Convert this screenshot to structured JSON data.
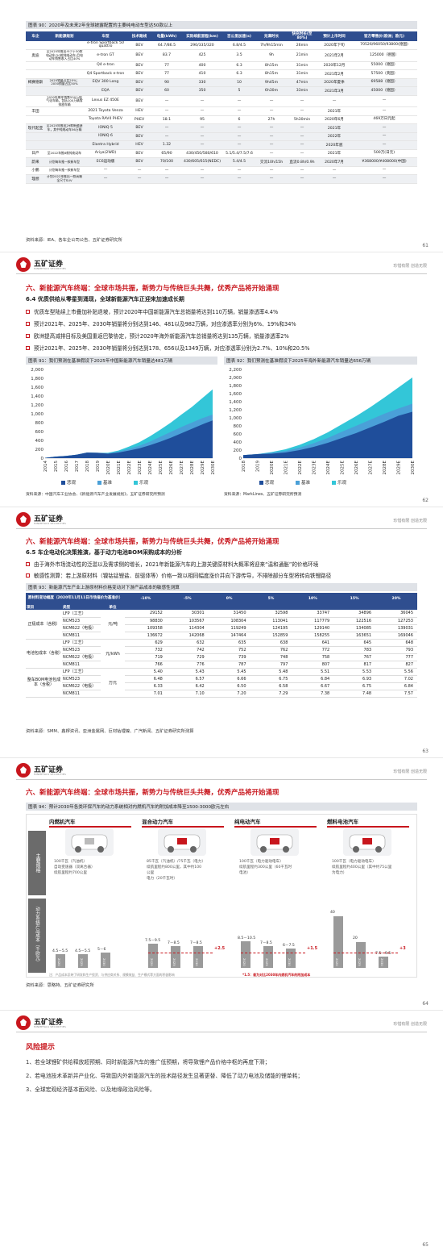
{
  "brand": {
    "name": "五矿证券",
    "en": "MINMETALS SECURITIES",
    "slogan": "珍惜有限 创造无限"
  },
  "p61": {
    "num": "61",
    "fig_title": "图表 90：2020年及未来2年全球披露配置的主要纯电动车型达50款以上",
    "headers": [
      "车企",
      "新能源规划",
      "车型",
      "技术路线",
      "电量(kWh)",
      "实际续航里程(km)",
      "百公里加速(s)",
      "充满时长",
      "快充时长(至80%)",
      "预计上市时间",
      "官方零售价(欧洲；欧元)"
    ],
    "rows": [
      [
        "",
        "",
        "e-tron Sportback 50 quattro",
        "BEV",
        "64.7/86.5",
        "290/335/320",
        "6.8/4.5",
        "7h/9h15min",
        "26min",
        "2020年下旬",
        "70526/96050/93800(德国)"
      ],
      [
        "奥迪",
        "至2025年推出不少于30款电动车(20款纯电动车)且电动车销售收入占比40%",
        "e-tron GT",
        "BEV",
        "83.7",
        "425",
        "3.5",
        "9h",
        "21min",
        "2021年2月",
        "125000（德国）"
      ],
      [
        "",
        "",
        "Q4 e-tron",
        "BEV",
        "77",
        "400",
        "6.3",
        "8h15m",
        "31min",
        "2020年12月",
        "55000（德国）"
      ],
      [
        "",
        "",
        "Q4 Sportback e-tron",
        "BEV",
        "77",
        "410",
        "6.3",
        "8h15m",
        "31min",
        "2021年2月",
        "57500（英国）"
      ],
      [
        "梅赛德斯",
        "2025销量占比25%；2030销量占比50%",
        "EQV 300 Long",
        "BEV",
        "90",
        "330",
        "10",
        "9h45m",
        "47min",
        "2020年夏季",
        "69588（德国）"
      ],
      [
        "",
        "",
        "EQA",
        "BEV",
        "60",
        "350",
        "5",
        "6h30m",
        "33min",
        "2021年3月",
        "45000（德国）"
      ],
      [
        "",
        "2030年每年销售550万电气化车辆，包括100万辆零排放车辆",
        "Lexus EZ 450E",
        "BEV",
        "—",
        "—",
        "—",
        "—",
        "—",
        "—",
        "—"
      ],
      [
        "丰田",
        "",
        "2021 Toyota Venza",
        "HEV",
        "—",
        "—",
        "—",
        "—",
        "—",
        "2021年",
        "—"
      ],
      [
        "",
        "",
        "Toyota RAV4 PHEV",
        "PHEV",
        "18.1",
        "95",
        "6",
        "27h",
        "5h30min",
        "2020年6月",
        "469万日元起"
      ],
      [
        "现代起亚",
        "至2025年推出29款新能源车，其中纯电动车56万辆",
        "IONIQ 5",
        "BEV",
        "—",
        "—",
        "—",
        "—",
        "—",
        "2021年",
        "—"
      ],
      [
        "",
        "",
        "IONIQ 6",
        "BEV",
        "—",
        "—",
        "—",
        "—",
        "—",
        "2022年",
        "—"
      ],
      [
        "",
        "",
        "Elantra Hybrid",
        "HEV",
        "1.32",
        "—",
        "—",
        "—",
        "—",
        "2020年底",
        "—"
      ],
      [
        "日产",
        "至2022年推8款纯电动车",
        "Ariya(2WD)",
        "BEV",
        "65/90",
        "430/450/580/610",
        "5.1/5.4/7.5/7.6",
        "—",
        "—",
        "2021年",
        "500万(日元)"
      ],
      [
        "蔚来",
        "计划每年推一款新车型",
        "EC6运动版",
        "BEV",
        "70/100",
        "430/605/615(NEDC)",
        "5.4/4.5",
        "交流10h/15h",
        "直流0.8h/0.9h",
        "2020年7月",
        "¥368000/¥408000(中国)"
      ],
      [
        "小鹏",
        "计划每年推一款新车型",
        "—",
        "—",
        "—",
        "—",
        "—",
        "—",
        "—",
        "—",
        "—"
      ],
      [
        "理想",
        "计划2022年推出一款高端全尺寸SUV",
        "—",
        "—",
        "—",
        "—",
        "—",
        "—",
        "—",
        "—",
        "—"
      ]
    ],
    "source": "资料来源：IEA、各车企公司公告、五矿证券研究所"
  },
  "p62": {
    "num": "62",
    "sec": "六、新能源汽车终端：全球市场共振，新势力与传统巨头共舞，优秀产品将开始涌现",
    "sub": "6.4 优质供给从零星到涌现，全球新能源汽车正迎来加速成长期",
    "bullets": [
      "优质车型陆续上市叠加补贴退坡，预计2020年中国新能源汽车总销量将达到110万辆，销量渗透率4.4%",
      "预计2021年、2025年、2030年销量将分别达到146、481以及982万辆，对应渗透率分别为6%、19%和34%",
      "欧洲提高减排目标及美国重返巴黎协定，预计2020年海外新能源汽车总销量将达到135万辆，销量渗透率2%",
      "预计2021年、2025年、2030年销量将分别达到178、656以及1349万辆，对应渗透率分别为2.7%、10%和20.5%"
    ],
    "fig91": "图表 91：我们预测在基准假设下2025年中国新能源汽车销量达481万辆",
    "fig92": "图表 92：我们预测在基准假设下2025年海外新能源汽车销量达656万辆",
    "legend": [
      "悲观",
      "基准",
      "乐观"
    ],
    "src1": "资料来源：中国汽车工业协会、《新能源汽车产业发展规划》，五矿证券研究所预测",
    "src2": "资料来源：MarkLines、五矿证券研究所预测"
  },
  "chart_data": [
    {
      "type": "area",
      "title": "",
      "x": [
        "2014",
        "2015",
        "2016",
        "2017",
        "2018",
        "2019",
        "2020E",
        "2021E",
        "2022E",
        "2023E",
        "2024E",
        "2025E",
        "2026E",
        "2027E",
        "2028E",
        "2029E",
        "2030E"
      ],
      "ylim": [
        0,
        2000
      ],
      "yticks": [
        "0",
        "200",
        "400",
        "600",
        "800",
        "1,000",
        "1,200",
        "1,400",
        "1,600",
        "1,800",
        "2,000"
      ],
      "series": [
        {
          "name": "悲观",
          "values": [
            7,
            33,
            51,
            77,
            126,
            121,
            100,
            125,
            170,
            220,
            290,
            370,
            460,
            560,
            660,
            760,
            850
          ]
        },
        {
          "name": "基准",
          "values": [
            7,
            33,
            51,
            77,
            126,
            121,
            110,
            146,
            210,
            280,
            370,
            481,
            590,
            700,
            800,
            900,
            982
          ]
        },
        {
          "name": "乐观",
          "values": [
            7,
            33,
            51,
            77,
            126,
            121,
            120,
            170,
            260,
            360,
            490,
            640,
            800,
            980,
            1150,
            1350,
            1550
          ]
        }
      ],
      "colors": [
        "#1f4e9b",
        "#4aa0d8",
        "#33c6d8"
      ]
    },
    {
      "type": "area",
      "title": "",
      "x": [
        "2018",
        "2019",
        "2020E",
        "2021E",
        "2022E",
        "2023E",
        "2024E",
        "2025E",
        "2026E",
        "2027E",
        "2028E",
        "2029E",
        "2030E"
      ],
      "ylim": [
        0,
        2200
      ],
      "yticks": [
        "0",
        "200",
        "400",
        "600",
        "800",
        "1,000",
        "1,200",
        "1,400",
        "1,600",
        "1,800",
        "2,000",
        "2,200"
      ],
      "series": [
        {
          "name": "悲观",
          "values": [
            75,
            100,
            110,
            140,
            200,
            280,
            380,
            500,
            620,
            760,
            900,
            1050,
            1150
          ]
        },
        {
          "name": "基准",
          "values": [
            75,
            100,
            135,
            178,
            260,
            370,
            500,
            656,
            800,
            950,
            1100,
            1230,
            1349
          ]
        },
        {
          "name": "乐观",
          "values": [
            75,
            100,
            150,
            220,
            330,
            470,
            640,
            840,
            1040,
            1260,
            1500,
            1750,
            2000
          ]
        }
      ],
      "colors": [
        "#1f4e9b",
        "#4aa0d8",
        "#33c6d8"
      ]
    }
  ],
  "p63": {
    "num": "63",
    "sec": "六、新能源汽车终端：全球市场共振，新势力与传统巨头共舞，优秀产品将开始涌现",
    "sub": "6.5 车企电动化决策推演，基于动力电池BOM采购成本的分析",
    "bullets": [
      "由于海外市场流动性的泛滥以及需求侧的增长，2021年新能源汽车的上游关键原材料大概率将迎来“温和通胀”的价格环境",
      "敏感性测算：若上游原材料（镍钴锰锂盐、前驱体等）价格一致以相同幅度涨价并向下游传导，不排除部分车型将转向铁锂路径"
    ],
    "fig": "图表 93：新能源汽车产业上游原材料价格变动对下游产品成本的敏感性测算",
    "h1": "原材料变动幅度（2020年11月11日市场报价为基准价）",
    "h_item": "项目",
    "h_type": "类型",
    "h_unit": "单位",
    "cols": [
      "-10%",
      "-5%",
      "0%",
      "5%",
      "10%",
      "15%",
      "20%"
    ],
    "groups": [
      {
        "name": "正极成本（含税）",
        "unit": "元/吨",
        "rows": [
          [
            "LFP（工艺）",
            "29152",
            "30301",
            "31450",
            "32598",
            "33747",
            "34896",
            "36045"
          ],
          [
            "NCM523",
            "98830",
            "103567",
            "108304",
            "113041",
            "117779",
            "122516",
            "127253"
          ],
          [
            "NCM622（电极）",
            "109358",
            "114304",
            "119249",
            "124195",
            "129140",
            "134085",
            "139031"
          ],
          [
            "NCM811",
            "136672",
            "142068",
            "147464",
            "152859",
            "158255",
            "163651",
            "169046"
          ]
        ]
      },
      {
        "name": "电池包成本（含税）",
        "unit": "元/kWh",
        "rows": [
          [
            "LFP（工艺）",
            "629",
            "632",
            "635",
            "638",
            "641",
            "645",
            "648"
          ],
          [
            "NCM523",
            "732",
            "742",
            "752",
            "762",
            "772",
            "783",
            "793"
          ],
          [
            "NCM622（电极）",
            "719",
            "729",
            "739",
            "748",
            "758",
            "767",
            "777"
          ],
          [
            "NCM811",
            "766",
            "776",
            "787",
            "797",
            "807",
            "817",
            "827"
          ]
        ]
      },
      {
        "name": "整车BOM电池包成本（含税）",
        "unit": "万元",
        "rows": [
          [
            "LFP（工艺）",
            "5.40",
            "5.43",
            "5.45",
            "5.48",
            "5.51",
            "5.53",
            "5.56"
          ],
          [
            "NCM523",
            "6.48",
            "6.57",
            "6.66",
            "6.75",
            "6.84",
            "6.93",
            "7.02"
          ],
          [
            "NCM622（电极）",
            "6.33",
            "6.42",
            "6.50",
            "6.58",
            "6.67",
            "6.75",
            "6.84"
          ],
          [
            "NCM811",
            "7.01",
            "7.10",
            "7.20",
            "7.29",
            "7.38",
            "7.48",
            "7.57"
          ]
        ]
      }
    ],
    "source": "资料来源：SMM、鑫椤资讯、亚洲金属网、巨材钴锂镍、广汽新闻、五矿证券研究所测算"
  },
  "p64": {
    "num": "64",
    "sec": "六、新能源汽车终端：全球市场共振，新势力与传统巨头共舞，优秀产品将开始涌现",
    "fig": "图表 94：预计2030年各类环保汽车的动力系统相对内燃机汽车的附加成本降至1500-3000欧元左右",
    "side1": "主要规格",
    "side2": "动力系统产品成本（千欧元）",
    "cols": [
      {
        "title": "内燃机汽车",
        "items": [
          "100千瓦（汽油机）",
          "自动变速器（双离合器）",
          "续航里程约700公里"
        ],
        "bars": [
          {
            "label": "4.5－5.5",
            "year": "2020",
            "v": 5
          },
          {
            "label": "4.5－5.5",
            "year": "2025",
            "v": 5
          },
          {
            "label": "5－6",
            "year": "2030",
            "v": 5.5
          }
        ],
        "delta": ""
      },
      {
        "title": "混合动力汽车",
        "items": [
          "85千瓦（汽油机）/75千瓦（电力）",
          "续航里程约800公里，其中约100",
          "公里",
          "电力（20千瓦时）"
        ],
        "bars": [
          {
            "label": "7.5－9.5",
            "year": "2020",
            "v": 8.5
          },
          {
            "label": "7－8.5",
            "year": "2025",
            "v": 7.75
          },
          {
            "label": "7－8.5",
            "year": "2030",
            "v": 7.75
          }
        ],
        "delta": "+2.5"
      },
      {
        "title": "纯电动汽车",
        "items": [
          "100千瓦（电力驱动电车）",
          "续航里程约300公里（60千瓦时",
          "电池）"
        ],
        "bars": [
          {
            "label": "8.5－10.5",
            "year": "2020",
            "v": 9.5
          },
          {
            "label": "7－8.5",
            "year": "2025",
            "v": 7.75
          },
          {
            "label": "6－7.5",
            "year": "2030",
            "v": 6.75
          }
        ],
        "delta": "+1.5"
      },
      {
        "title": "燃料电池汽车",
        "items": [
          "100千瓦（电力驱动电车）",
          "续航里程约400公里（其中约75公里",
          "为电力）"
        ],
        "bars": [
          {
            "label": "40",
            "year": "2020",
            "v": 40
          },
          {
            "label": "20",
            "year": "2025",
            "v": 20
          },
          {
            "label": "7.5－9.5",
            "year": "2030",
            "v": 8.5
          }
        ],
        "delta": "+3"
      }
    ],
    "note": "注：产品成本反映了研发和生产投资、与供应商关系、规模效益、生产模式等方面的积极影响",
    "note2": "*1.5：差为对比2030年内燃机汽车的附加成本",
    "source": "资料来源：思略特、五矿证券研究所"
  },
  "p65": {
    "num": "65",
    "title": "风险提示",
    "items": [
      "1、若全球锂矿供给释放超预期、同时新能源汽车的推广低预期，将导致锂产品价格中枢的再度下滑；",
      "2、若电池技术革新并产业化、导致国内外新能源汽车的技术路径发生显著更替、降低了动力电池及储能的锂单耗；",
      "3、全球宏观经济基本面风险、以及地缘政治风险等。"
    ]
  }
}
